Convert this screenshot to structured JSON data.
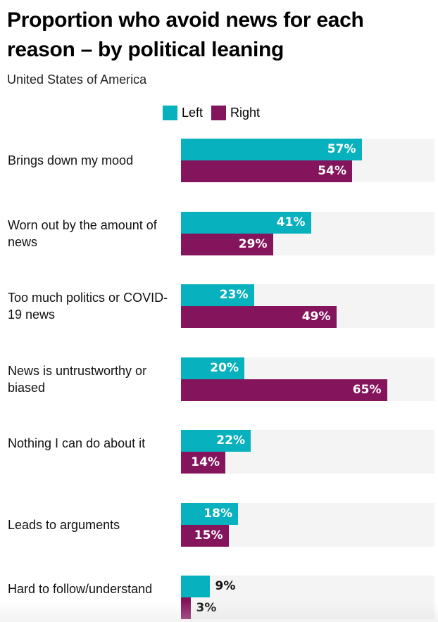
{
  "title": "Proportion who avoid news for each reason – by political leaning",
  "subtitle": "United States of America",
  "legend": [
    {
      "label": "Left",
      "color": "#07b1be"
    },
    {
      "label": "Right",
      "color": "#84145c"
    }
  ],
  "chart_data": {
    "type": "bar",
    "orientation": "horizontal",
    "title": "Proportion who avoid news for each reason – by political leaning",
    "subtitle": "United States of America",
    "categories": [
      "Brings down my mood",
      "Worn out by the amount of news",
      "Too much politics or COVID-19 news",
      "News is untrustworthy or biased",
      "Nothing I can do about it",
      "Leads to arguments",
      "Hard to follow/understand"
    ],
    "series": [
      {
        "name": "Left",
        "color": "#07b1be",
        "values": [
          57,
          41,
          23,
          20,
          22,
          18,
          9
        ]
      },
      {
        "name": "Right",
        "color": "#84145c",
        "values": [
          54,
          29,
          49,
          65,
          14,
          15,
          3
        ]
      }
    ],
    "value_suffix": "%",
    "xlim": [
      0,
      80
    ],
    "xlabel": "",
    "ylabel": "",
    "grid": false,
    "legend_position": "top"
  }
}
